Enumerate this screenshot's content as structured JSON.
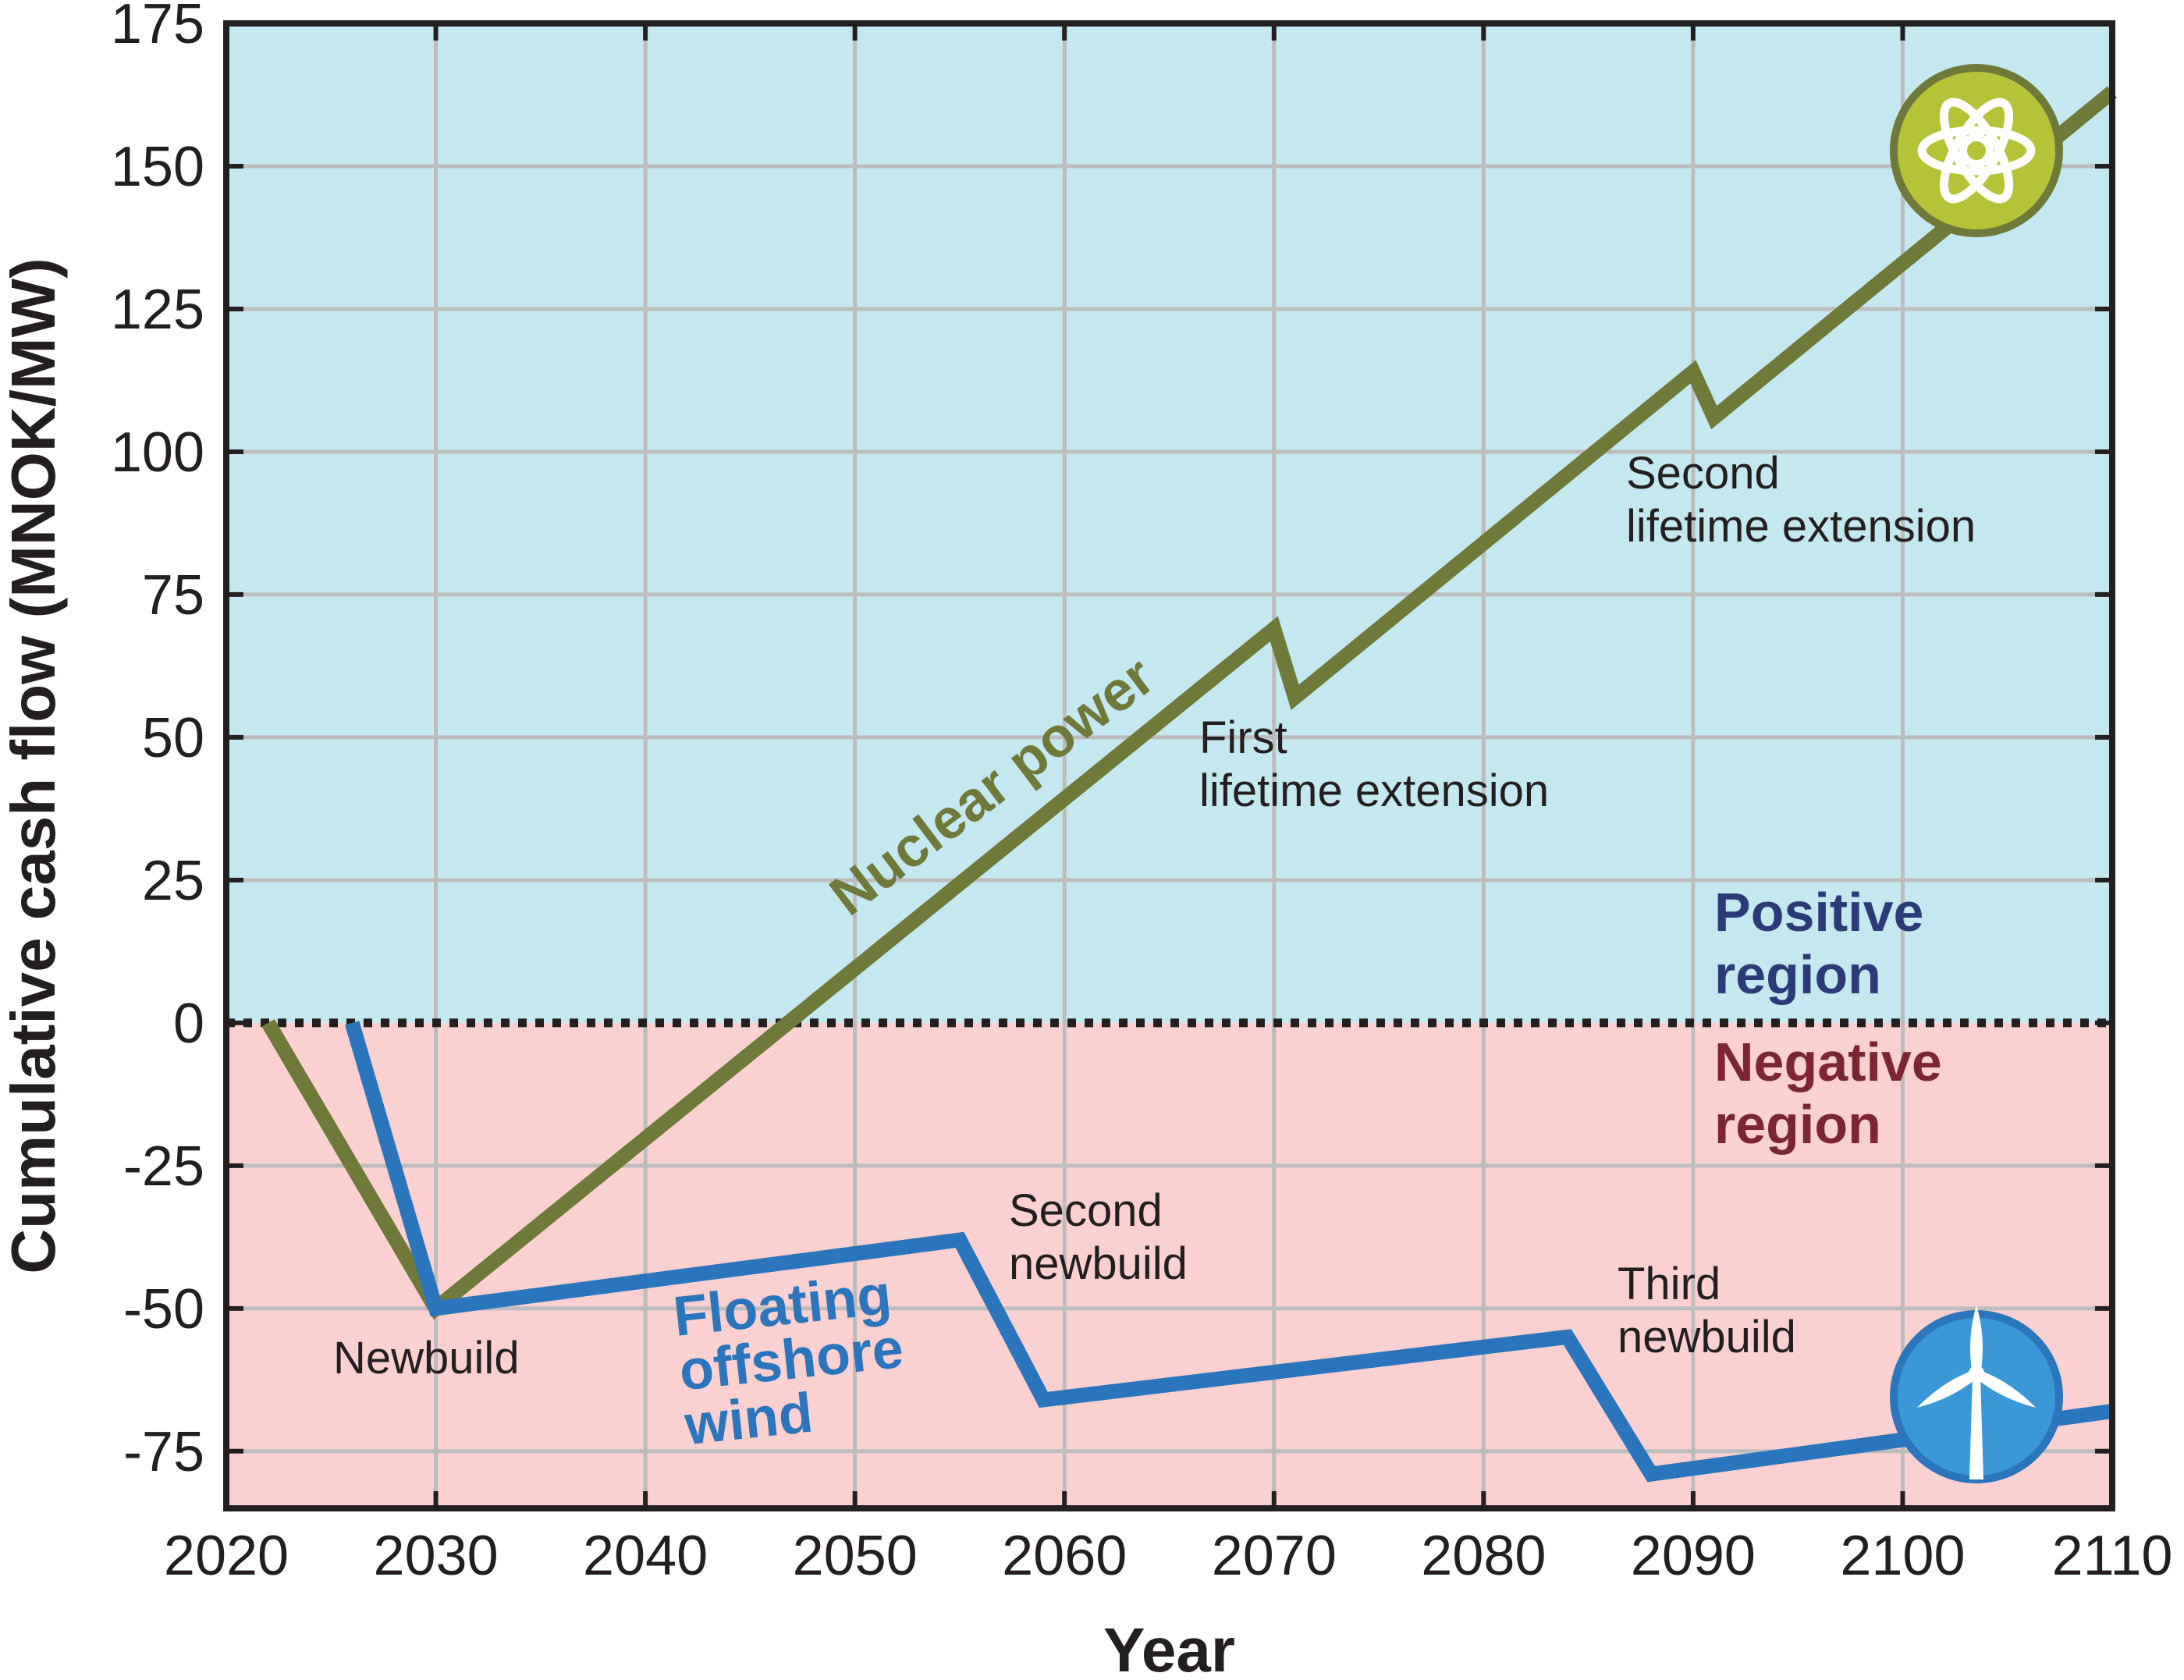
{
  "chart_data": {
    "type": "line",
    "title": "",
    "xlabel": "Year",
    "ylabel": "Cumulative cash flow (MNOK/MW)",
    "xlim": [
      2020,
      2110
    ],
    "ylim": [
      -85,
      175
    ],
    "xticks": [
      2020,
      2030,
      2040,
      2050,
      2060,
      2070,
      2080,
      2090,
      2100,
      2110
    ],
    "yticks": [
      175,
      150,
      125,
      100,
      75,
      50,
      25,
      0,
      -25,
      -50,
      -75
    ],
    "grid": true,
    "zero_line": "dotted",
    "series": [
      {
        "name": "Nuclear power",
        "color": "#6f7a3a",
        "icon": "atom-icon",
        "x": [
          2022,
          2030,
          2070,
          2071,
          2090,
          2091,
          2110
        ],
        "y": [
          0,
          -50,
          69,
          57,
          114,
          106,
          163
        ]
      },
      {
        "name": "Floating offshore wind",
        "color": "#2a75bb",
        "icon": "wind-turbine-icon",
        "x": [
          2026,
          2030,
          2055,
          2059,
          2084,
          2088,
          2110
        ],
        "y": [
          0,
          -50,
          -38,
          -66,
          -55,
          -79,
          -68
        ]
      }
    ],
    "series_labels": [
      {
        "lines": [
          "Nuclear power"
        ],
        "color": "#6f7a3a"
      },
      {
        "lines": [
          "Floating",
          "offshore",
          "wind"
        ],
        "color": "#2a75bb"
      }
    ],
    "regions": [
      {
        "lines": [
          "Positive",
          "region"
        ],
        "color": "#2b3a78",
        "fill": "#c4e8ef"
      },
      {
        "lines": [
          "Negative",
          "region"
        ],
        "color": "#7b2630",
        "fill": "#fbd0d1"
      }
    ],
    "annotations": [
      {
        "lines": [
          "Newbuild"
        ]
      },
      {
        "lines": [
          "Second",
          "newbuild"
        ]
      },
      {
        "lines": [
          "Third",
          "newbuild"
        ]
      },
      {
        "lines": [
          "First",
          "lifetime extension"
        ]
      },
      {
        "lines": [
          "Second",
          "lifetime extension"
        ]
      }
    ]
  }
}
